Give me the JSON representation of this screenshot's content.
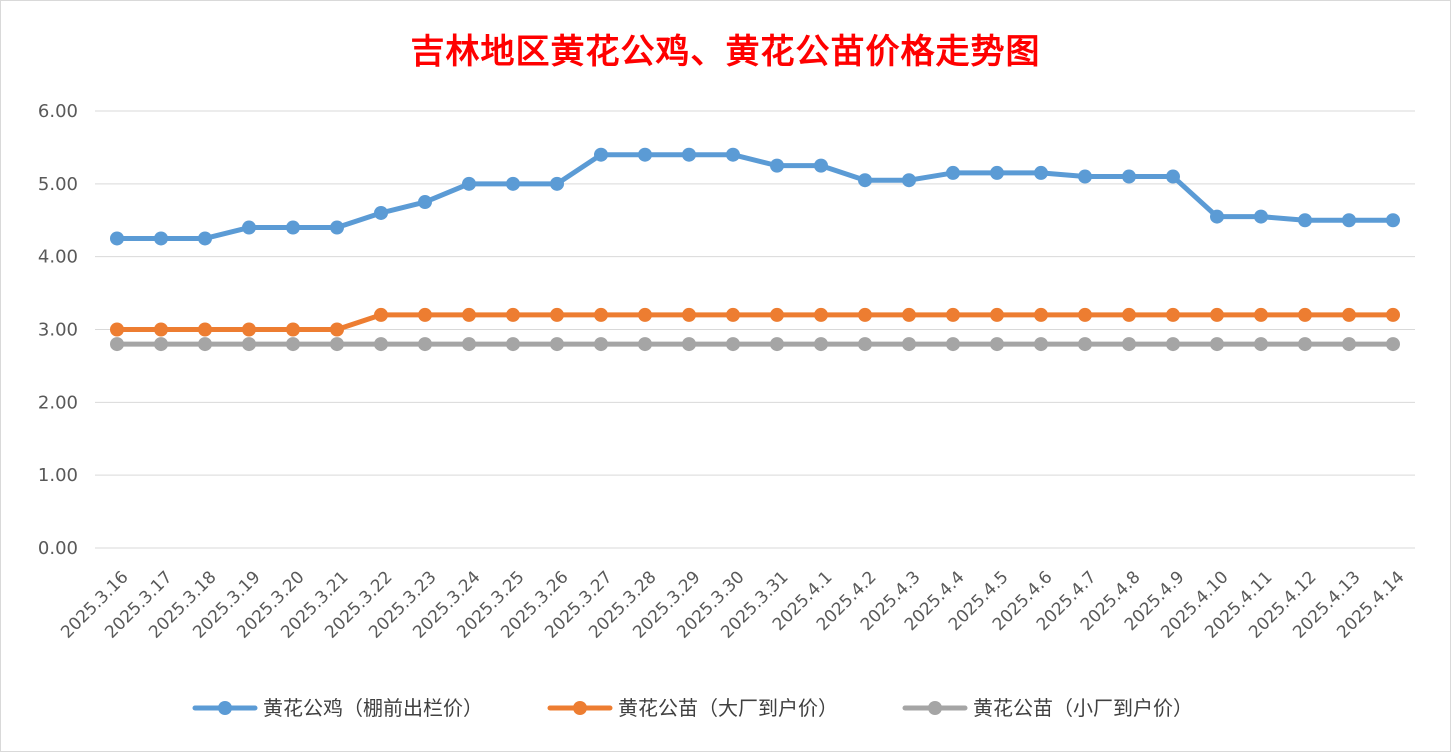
{
  "chart_data": {
    "type": "line",
    "title": "吉林地区黄花公鸡、黄花公苗价格走势图",
    "xlabel": "",
    "ylabel": "",
    "ylim": [
      0,
      6
    ],
    "yticks": [
      "0.00",
      "1.00",
      "2.00",
      "3.00",
      "4.00",
      "5.00",
      "6.00"
    ],
    "grid": "horizontal",
    "legend_position": "bottom",
    "categories": [
      "2025.3.16",
      "2025.3.17",
      "2025.3.18",
      "2025.3.19",
      "2025.3.20",
      "2025.3.21",
      "2025.3.22",
      "2025.3.23",
      "2025.3.24",
      "2025.3.25",
      "2025.3.26",
      "2025.3.27",
      "2025.3.28",
      "2025.3.29",
      "2025.3.30",
      "2025.3.31",
      "2025.4.1",
      "2025.4.2",
      "2025.4.3",
      "2025.4.4",
      "2025.4.5",
      "2025.4.6",
      "2025.4.7",
      "2025.4.8",
      "2025.4.9",
      "2025.4.10",
      "2025.4.11",
      "2025.4.12",
      "2025.4.13",
      "2025.4.14"
    ],
    "series": [
      {
        "name": "黄花公鸡（棚前出栏价）",
        "color": "#5b9bd5",
        "values": [
          4.25,
          4.25,
          4.25,
          4.4,
          4.4,
          4.4,
          4.6,
          4.75,
          5.0,
          5.0,
          5.0,
          5.4,
          5.4,
          5.4,
          5.4,
          5.25,
          5.25,
          5.05,
          5.05,
          5.15,
          5.15,
          5.15,
          5.1,
          5.1,
          5.1,
          4.55,
          4.55,
          4.5,
          4.5,
          4.5
        ]
      },
      {
        "name": "黄花公苗（大厂到户价）",
        "color": "#ed7d31",
        "values": [
          3.0,
          3.0,
          3.0,
          3.0,
          3.0,
          3.0,
          3.2,
          3.2,
          3.2,
          3.2,
          3.2,
          3.2,
          3.2,
          3.2,
          3.2,
          3.2,
          3.2,
          3.2,
          3.2,
          3.2,
          3.2,
          3.2,
          3.2,
          3.2,
          3.2,
          3.2,
          3.2,
          3.2,
          3.2,
          3.2
        ]
      },
      {
        "name": "黄花公苗（小厂到户价）",
        "color": "#a5a5a5",
        "values": [
          2.8,
          2.8,
          2.8,
          2.8,
          2.8,
          2.8,
          2.8,
          2.8,
          2.8,
          2.8,
          2.8,
          2.8,
          2.8,
          2.8,
          2.8,
          2.8,
          2.8,
          2.8,
          2.8,
          2.8,
          2.8,
          2.8,
          2.8,
          2.8,
          2.8,
          2.8,
          2.8,
          2.8,
          2.8,
          2.8
        ]
      }
    ]
  }
}
